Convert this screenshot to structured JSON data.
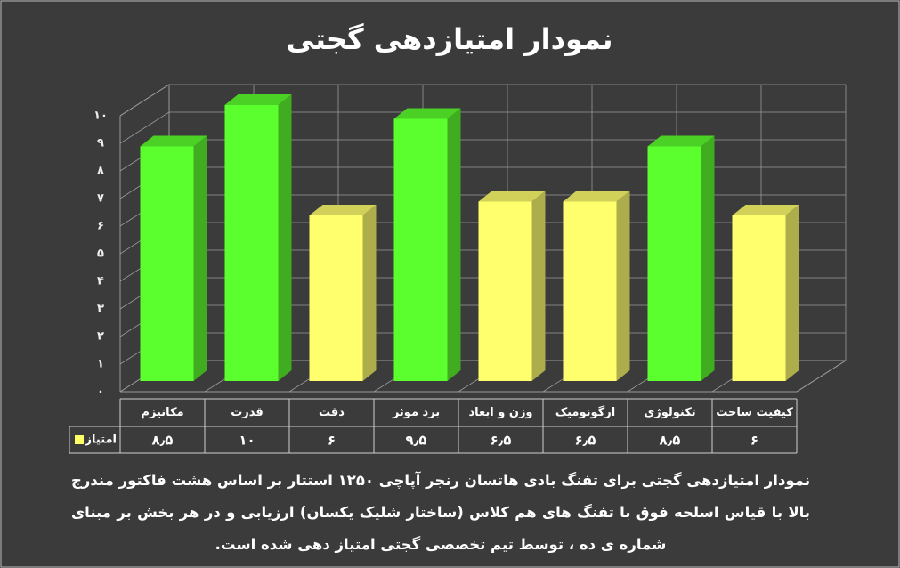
{
  "chart_data": {
    "type": "bar3d",
    "title": "نمودار امتیازدهی گجتی",
    "categories": [
      "مکانیزم",
      "قدرت",
      "دقت",
      "برد موثر",
      "وزن و ابعاد",
      "ارگونومیک",
      "تکنولوژی",
      "کیفیت ساخت"
    ],
    "series": [
      {
        "name": "امتیاز",
        "color": "#ffff66",
        "colors": [
          "#5cff2e",
          "#5cff2e",
          "#ffff6e",
          "#5cff2e",
          "#ffff6e",
          "#ffff6e",
          "#5cff2e",
          "#ffff6e"
        ],
        "values": [
          8.5,
          10,
          6,
          9.5,
          6.5,
          6.5,
          8.5,
          6
        ],
        "value_labels": [
          "۸٫۵",
          "۱۰",
          "۶",
          "۹٫۵",
          "۶٫۵",
          "۶٫۵",
          "۸٫۵",
          "۶"
        ]
      }
    ],
    "ylim": [
      0,
      10
    ],
    "yticks": [
      {
        "value": 0,
        "label": "۰"
      },
      {
        "value": 1,
        "label": "۱"
      },
      {
        "value": 2,
        "label": "۲"
      },
      {
        "value": 3,
        "label": "۳"
      },
      {
        "value": 4,
        "label": "۴"
      },
      {
        "value": 5,
        "label": "۵"
      },
      {
        "value": 6,
        "label": "۶"
      },
      {
        "value": 7,
        "label": "۷"
      },
      {
        "value": 8,
        "label": "۸"
      },
      {
        "value": 9,
        "label": "۹"
      },
      {
        "value": 10,
        "label": "۱۰"
      }
    ],
    "grid": true,
    "caption": "نمودار امتیازدهی گجتی برای تفنگ بادی هاتسان رنجر آپاچی ۱۲۵۰ استتار بر اساس هشت فاکتور مندرج بالا با قیاس اسلحه فوق با تفنگ های هم کلاس (ساختار شلیک یکسان) ارزیابی و در هر بخش بر مبنای شماره ی ده ، توسط تیم تخصصی گجتی امتیاز دهی شده است."
  }
}
